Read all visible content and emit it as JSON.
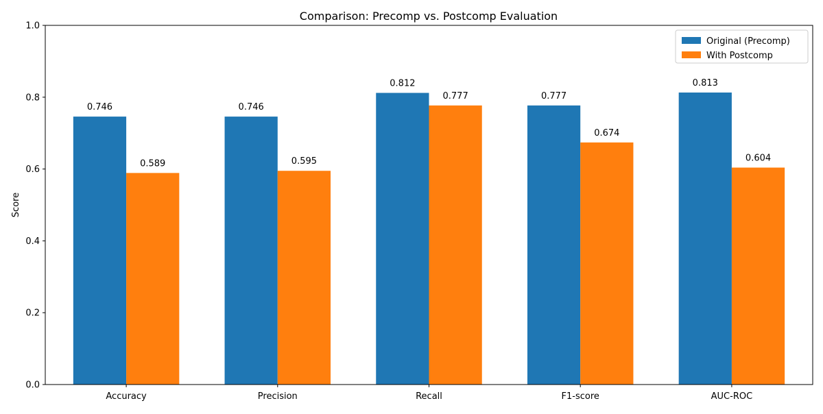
{
  "chart_data": {
    "type": "bar",
    "title": "Comparison: Precomp vs. Postcomp Evaluation",
    "xlabel": "",
    "ylabel": "Score",
    "ylim": [
      0,
      1.0
    ],
    "yticks": [
      "0.0",
      "0.2",
      "0.4",
      "0.6",
      "0.8",
      "1.0"
    ],
    "categories": [
      "Accuracy",
      "Precision",
      "Recall",
      "F1-score",
      "AUC-ROC"
    ],
    "series": [
      {
        "name": "Original (Precomp)",
        "color": "#1f77b4",
        "values": [
          0.746,
          0.746,
          0.812,
          0.777,
          0.813
        ],
        "labels": [
          "0.746",
          "0.746",
          "0.812",
          "0.777",
          "0.813"
        ]
      },
      {
        "name": "With Postcomp",
        "color": "#ff7f0e",
        "values": [
          0.589,
          0.595,
          0.777,
          0.674,
          0.604
        ],
        "labels": [
          "0.589",
          "0.595",
          "0.777",
          "0.674",
          "0.604"
        ]
      }
    ],
    "legend_position": "top-right",
    "grid": false
  }
}
